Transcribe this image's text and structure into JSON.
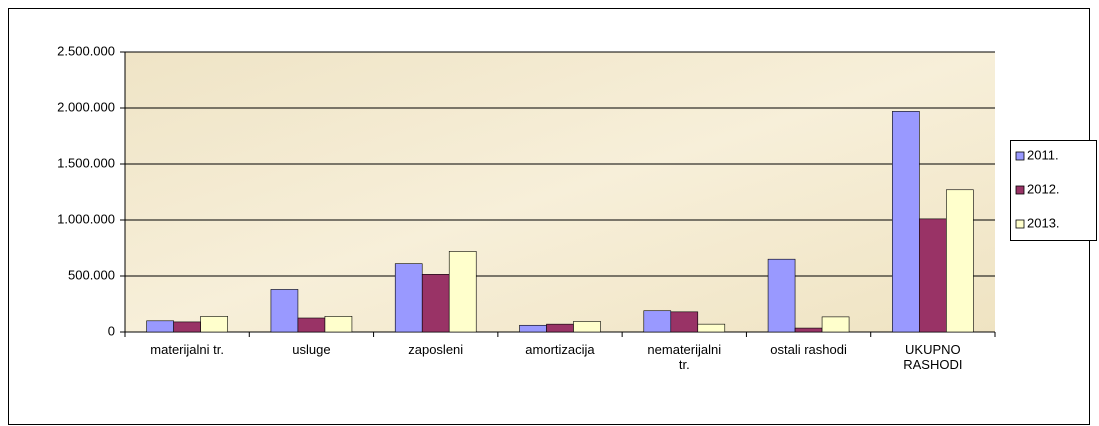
{
  "chart_data": {
    "type": "bar",
    "categories": [
      "materijalni tr.",
      "usluge",
      "zaposleni",
      "amortizacija",
      "nematerijalni\ntr.",
      "ostali rashodi",
      "UKUPNO\nRASHODI"
    ],
    "series": [
      {
        "name": "2011.",
        "color": "#9999ff",
        "values": [
          100000,
          380000,
          610000,
          60000,
          190000,
          650000,
          1970000
        ]
      },
      {
        "name": "2012.",
        "color": "#993366",
        "values": [
          90000,
          125000,
          515000,
          70000,
          180000,
          35000,
          1010000
        ]
      },
      {
        "name": "2013.",
        "color": "#ffffcc",
        "values": [
          140000,
          140000,
          720000,
          95000,
          70000,
          135000,
          1270000
        ]
      }
    ],
    "ylim": [
      0,
      2500000
    ],
    "yticks": [
      0,
      {
        "value": 500000,
        "label": "500.000"
      },
      {
        "value": 1000000,
        "label": "1.000.000"
      },
      {
        "value": 1500000,
        "label": "1.500.000"
      },
      {
        "value": 2000000,
        "label": "2.000.000"
      },
      {
        "value": 2500000,
        "label": "2.500.000"
      }
    ],
    "grid": true,
    "legend": "right"
  }
}
